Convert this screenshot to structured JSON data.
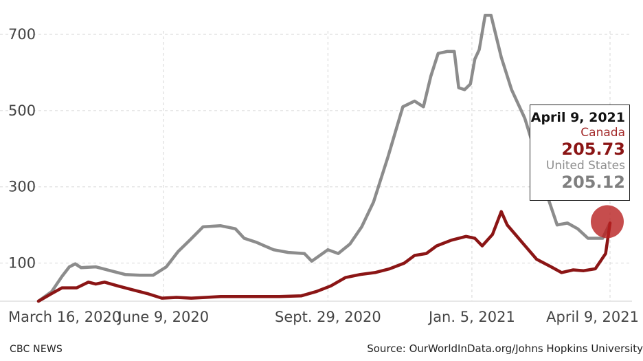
{
  "chart_data": {
    "type": "line",
    "title": "",
    "xlabel": "",
    "ylabel": "",
    "ylim": [
      0,
      740
    ],
    "yticks": [
      100,
      300,
      500,
      700
    ],
    "xticks": [
      {
        "day": 0,
        "label": "March 16, 2020"
      },
      {
        "day": 85,
        "label": "June 9, 2020"
      },
      {
        "day": 197,
        "label": "Sept. 29, 2020"
      },
      {
        "day": 295,
        "label": "Jan. 5, 2021"
      },
      {
        "day": 389,
        "label": "April 9, 2021"
      }
    ],
    "series": [
      {
        "name": "United States",
        "color": "#8c8c8c",
        "points": [
          [
            0,
            0
          ],
          [
            9,
            25
          ],
          [
            16,
            65
          ],
          [
            21,
            90
          ],
          [
            25,
            98
          ],
          [
            29,
            88
          ],
          [
            39,
            90
          ],
          [
            49,
            80
          ],
          [
            59,
            70
          ],
          [
            69,
            68
          ],
          [
            78,
            68
          ],
          [
            87,
            90
          ],
          [
            95,
            130
          ],
          [
            103,
            160
          ],
          [
            112,
            195
          ],
          [
            124,
            198
          ],
          [
            134,
            190
          ],
          [
            140,
            165
          ],
          [
            148,
            155
          ],
          [
            160,
            135
          ],
          [
            170,
            128
          ],
          [
            181,
            125
          ],
          [
            186,
            105
          ],
          [
            197,
            135
          ],
          [
            204,
            125
          ],
          [
            212,
            150
          ],
          [
            220,
            195
          ],
          [
            228,
            260
          ],
          [
            238,
            380
          ],
          [
            248,
            510
          ],
          [
            256,
            525
          ],
          [
            262,
            510
          ],
          [
            267,
            590
          ],
          [
            272,
            650
          ],
          [
            278,
            655
          ],
          [
            283,
            655
          ],
          [
            286,
            560
          ],
          [
            290,
            555
          ],
          [
            294,
            570
          ],
          [
            297,
            635
          ],
          [
            300,
            660
          ],
          [
            304,
            750
          ],
          [
            308,
            750
          ],
          [
            315,
            640
          ],
          [
            322,
            555
          ],
          [
            331,
            480
          ],
          [
            339,
            380
          ],
          [
            346,
            280
          ],
          [
            353,
            200
          ],
          [
            360,
            205
          ],
          [
            367,
            190
          ],
          [
            374,
            165
          ],
          [
            380,
            165
          ],
          [
            384,
            165
          ],
          [
            389,
            205
          ]
        ]
      },
      {
        "name": "Canada",
        "color": "#8b1515",
        "points": [
          [
            0,
            0
          ],
          [
            9,
            20
          ],
          [
            16,
            35
          ],
          [
            26,
            35
          ],
          [
            34,
            50
          ],
          [
            39,
            45
          ],
          [
            45,
            50
          ],
          [
            54,
            40
          ],
          [
            64,
            30
          ],
          [
            74,
            20
          ],
          [
            84,
            8
          ],
          [
            94,
            10
          ],
          [
            104,
            8
          ],
          [
            114,
            10
          ],
          [
            124,
            12
          ],
          [
            134,
            12
          ],
          [
            149,
            12
          ],
          [
            164,
            12
          ],
          [
            179,
            14
          ],
          [
            189,
            25
          ],
          [
            199,
            40
          ],
          [
            209,
            62
          ],
          [
            219,
            70
          ],
          [
            229,
            75
          ],
          [
            239,
            85
          ],
          [
            249,
            100
          ],
          [
            256,
            120
          ],
          [
            264,
            125
          ],
          [
            271,
            145
          ],
          [
            281,
            160
          ],
          [
            291,
            170
          ],
          [
            297,
            165
          ],
          [
            302,
            145
          ],
          [
            309,
            175
          ],
          [
            315,
            235
          ],
          [
            319,
            200
          ],
          [
            329,
            155
          ],
          [
            339,
            110
          ],
          [
            349,
            90
          ],
          [
            356,
            75
          ],
          [
            364,
            82
          ],
          [
            371,
            80
          ],
          [
            379,
            85
          ],
          [
            386,
            125
          ],
          [
            389,
            205
          ]
        ]
      }
    ],
    "tooltip": {
      "date": "April 9, 2021",
      "canada_label": "Canada",
      "canada_value": "205.73",
      "us_label": "United States",
      "us_value": "205.12"
    }
  },
  "footer": {
    "left": "CBC NEWS",
    "right": "Source: OurWorldInData.org/Johns Hopkins University"
  }
}
